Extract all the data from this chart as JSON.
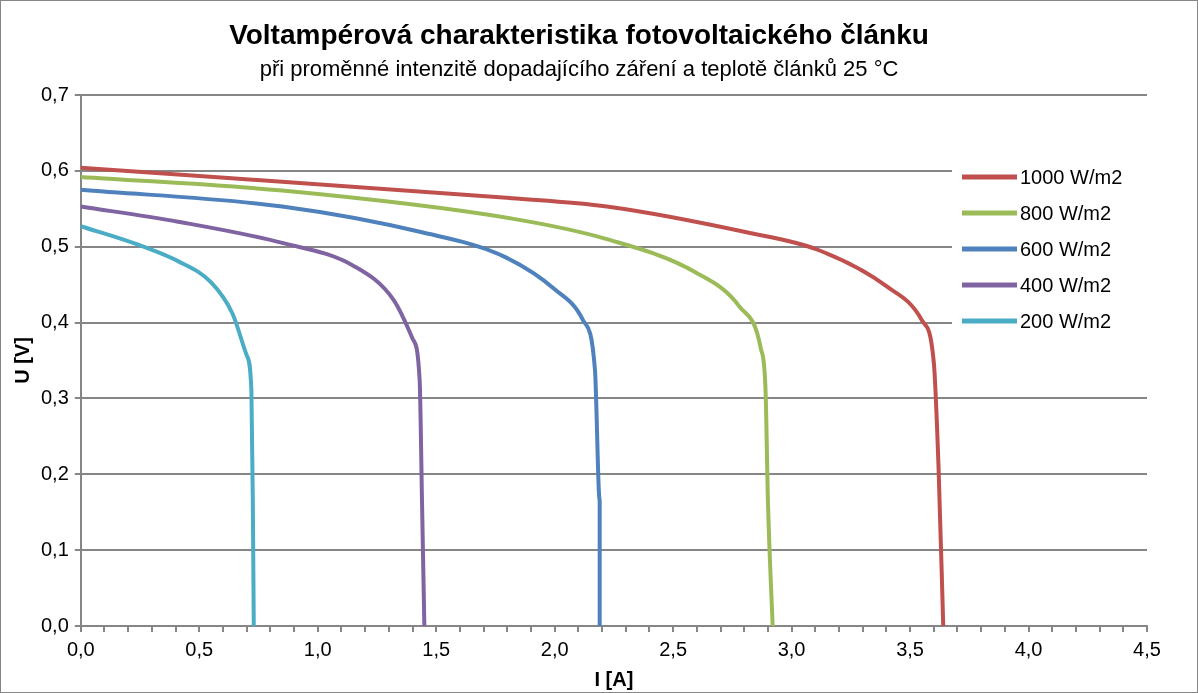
{
  "chart_data": {
    "type": "line",
    "title": "Voltampérová charakteristika fotovoltaického článku",
    "subtitle": "při proměnné intenzitě dopadajícího záření a teplotě článků 25 °C",
    "xlabel": "I [A]",
    "ylabel": "U [V]",
    "xlim": [
      0,
      4.5
    ],
    "ylim": [
      0,
      0.7
    ],
    "xticks": [
      {
        "value": 0,
        "label": "0,0"
      },
      {
        "value": 0.1,
        "label": null
      },
      {
        "value": 0.2,
        "label": null
      },
      {
        "value": 0.3,
        "label": null
      },
      {
        "value": 0.4,
        "label": null
      },
      {
        "value": 0.5,
        "label": "0,5"
      },
      {
        "value": 0.6,
        "label": null
      },
      {
        "value": 0.7,
        "label": null
      },
      {
        "value": 0.8,
        "label": null
      },
      {
        "value": 0.9,
        "label": null
      },
      {
        "value": 1,
        "label": "1,0"
      },
      {
        "value": 1.1,
        "label": null
      },
      {
        "value": 1.2,
        "label": null
      },
      {
        "value": 1.3,
        "label": null
      },
      {
        "value": 1.4,
        "label": null
      },
      {
        "value": 1.5,
        "label": "1,5"
      },
      {
        "value": 1.6,
        "label": null
      },
      {
        "value": 1.7,
        "label": null
      },
      {
        "value": 1.8,
        "label": null
      },
      {
        "value": 1.9,
        "label": null
      },
      {
        "value": 2,
        "label": "2,0"
      },
      {
        "value": 2.1,
        "label": null
      },
      {
        "value": 2.2,
        "label": null
      },
      {
        "value": 2.3,
        "label": null
      },
      {
        "value": 2.4,
        "label": null
      },
      {
        "value": 2.5,
        "label": "2,5"
      },
      {
        "value": 2.6,
        "label": null
      },
      {
        "value": 2.7,
        "label": null
      },
      {
        "value": 2.8,
        "label": null
      },
      {
        "value": 2.9,
        "label": null
      },
      {
        "value": 3,
        "label": "3,0"
      },
      {
        "value": 3.1,
        "label": null
      },
      {
        "value": 3.2,
        "label": null
      },
      {
        "value": 3.3,
        "label": null
      },
      {
        "value": 3.4,
        "label": null
      },
      {
        "value": 3.5,
        "label": "3,5"
      },
      {
        "value": 3.6,
        "label": null
      },
      {
        "value": 3.7,
        "label": null
      },
      {
        "value": 3.8,
        "label": null
      },
      {
        "value": 3.9,
        "label": null
      },
      {
        "value": 4,
        "label": "4,0"
      },
      {
        "value": 4.1,
        "label": null
      },
      {
        "value": 4.2,
        "label": null
      },
      {
        "value": 4.3,
        "label": null
      },
      {
        "value": 4.4,
        "label": null
      },
      {
        "value": 4.5,
        "label": "4,5"
      }
    ],
    "yticks": [
      {
        "value": 0,
        "label": "0,0"
      },
      {
        "value": 0.1,
        "label": "0,1"
      },
      {
        "value": 0.2,
        "label": "0,2"
      },
      {
        "value": 0.3,
        "label": "0,3"
      },
      {
        "value": 0.4,
        "label": "0,4"
      },
      {
        "value": 0.5,
        "label": "0,5"
      },
      {
        "value": 0.6,
        "label": "0,6"
      },
      {
        "value": 0.7,
        "label": "0,7"
      }
    ],
    "grid": "y",
    "legend": "right",
    "marker": "none",
    "line_style": "solid",
    "series": [
      {
        "name": "1000 W/m2",
        "color": "#c0504d",
        "x": [
          0,
          1.82,
          2.22,
          2.81,
          3.11,
          3.4,
          3.55,
          3.6,
          3.62,
          3.64
        ],
        "values": [
          0.604,
          0.564,
          0.553,
          0.519,
          0.496,
          0.448,
          0.403,
          0.348,
          0.211,
          0
        ]
      },
      {
        "name": "800 W/m2",
        "color": "#9bbb59",
        "x": [
          0,
          0.85,
          1.82,
          2.22,
          2.59,
          2.78,
          2.87,
          2.89,
          2.9,
          2.92
        ],
        "values": [
          0.592,
          0.574,
          0.537,
          0.51,
          0.467,
          0.421,
          0.366,
          0.311,
          0.166,
          0
        ]
      },
      {
        "name": "600 W/m2",
        "color": "#4f81bd",
        "x": [
          0,
          0.85,
          1.44,
          1.78,
          2.0,
          2.12,
          2.17,
          2.19,
          2.19
        ],
        "values": [
          0.575,
          0.553,
          0.519,
          0.488,
          0.444,
          0.403,
          0.338,
          0.166,
          0
        ]
      },
      {
        "name": "400 W/m2",
        "color": "#8064a2",
        "x": [
          0,
          0.41,
          0.85,
          1.15,
          1.32,
          1.4,
          1.43,
          1.44,
          1.45
        ],
        "values": [
          0.553,
          0.533,
          0.505,
          0.475,
          0.43,
          0.379,
          0.325,
          0.166,
          0
        ]
      },
      {
        "name": "200 W/m2",
        "color": "#4bacc6",
        "x": [
          0,
          0.23,
          0.41,
          0.55,
          0.64,
          0.7,
          0.72,
          0.726,
          0.73
        ],
        "values": [
          0.527,
          0.504,
          0.481,
          0.453,
          0.412,
          0.357,
          0.311,
          0.166,
          0
        ]
      }
    ]
  }
}
